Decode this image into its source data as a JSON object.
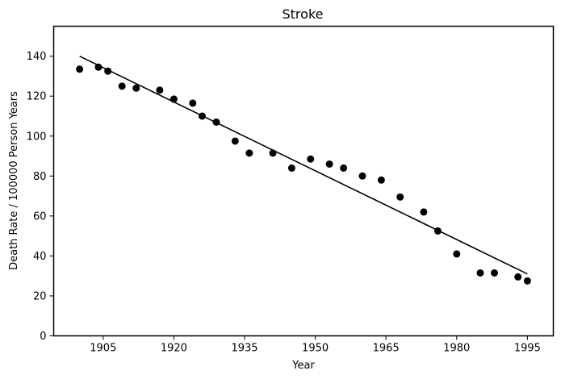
{
  "chart_data": {
    "type": "scatter",
    "title": "Stroke",
    "xlabel": "Year",
    "ylabel": "Death Rate / 100000 Person Years",
    "xlim": [
      1894.5,
      2000.5
    ],
    "ylim": [
      0,
      155
    ],
    "xticks": [
      1905,
      1920,
      1935,
      1950,
      1965,
      1980,
      1995
    ],
    "yticks": [
      0,
      20,
      40,
      60,
      80,
      100,
      120,
      140
    ],
    "grid": false,
    "legend": "none",
    "colors": {
      "points": "#000000",
      "fit_line": "#000000"
    },
    "series": [
      {
        "kind": "points",
        "x": [
          1900,
          1904,
          1906,
          1909,
          1912,
          1917,
          1920,
          1924,
          1926,
          1929,
          1933,
          1936,
          1941,
          1945,
          1949,
          1953,
          1956,
          1960,
          1964,
          1968,
          1973,
          1976,
          1980,
          1985,
          1988,
          1993,
          1995
        ],
        "y": [
          133.5,
          134.5,
          132.5,
          125,
          124,
          123,
          118.5,
          116.5,
          110,
          107,
          97.5,
          91.5,
          91.5,
          84,
          88.5,
          86,
          84,
          80,
          78,
          69.5,
          62,
          52.5,
          41,
          31.5,
          31.5,
          29.5,
          27.5
        ]
      },
      {
        "kind": "fit_line",
        "x": [
          1900,
          1995
        ],
        "y": [
          140,
          31
        ]
      }
    ]
  }
}
